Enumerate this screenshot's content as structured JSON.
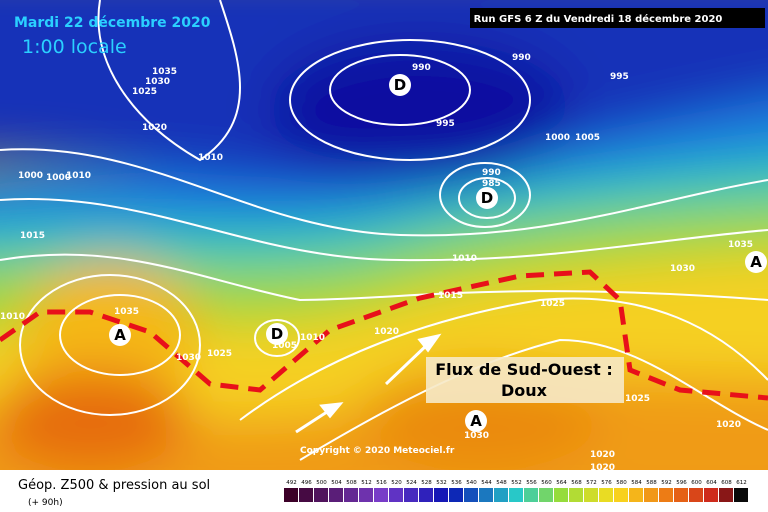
{
  "header": {
    "date": "Mardi 22 décembre 2020",
    "time": "1:00 locale",
    "run": "Run GFS 6 Z du Vendredi 18 décembre 2020"
  },
  "pressure_labels": [
    "1035",
    "1030",
    "1025",
    "1020",
    "990",
    "990",
    "995",
    "995",
    "1010",
    "1000",
    "1005",
    "1000",
    "1000",
    "1010",
    "990",
    "985",
    "1015",
    "1010",
    "1015",
    "1025",
    "1035",
    "1030",
    "1035",
    "1010",
    "1005",
    "1010",
    "1025",
    "1030",
    "1020",
    "1025",
    "1020",
    "1020",
    "1020",
    "1030"
  ],
  "centers": [
    "D",
    "D",
    "D",
    "A",
    "A",
    "A"
  ],
  "annotation": {
    "line1": "Flux de Sud-Ouest :",
    "line2": "Doux"
  },
  "copyright": "Copyright © 2020 Meteociel.fr",
  "legend": {
    "title": "Géop. Z500 & pression au sol",
    "subtitle": "(+ 90h)",
    "scale": [
      492,
      496,
      500,
      504,
      508,
      512,
      516,
      520,
      524,
      528,
      532,
      536,
      540,
      544,
      548,
      552,
      556,
      560,
      564,
      568,
      572,
      576,
      580,
      584,
      588,
      592,
      596,
      600,
      604,
      608,
      612
    ]
  }
}
